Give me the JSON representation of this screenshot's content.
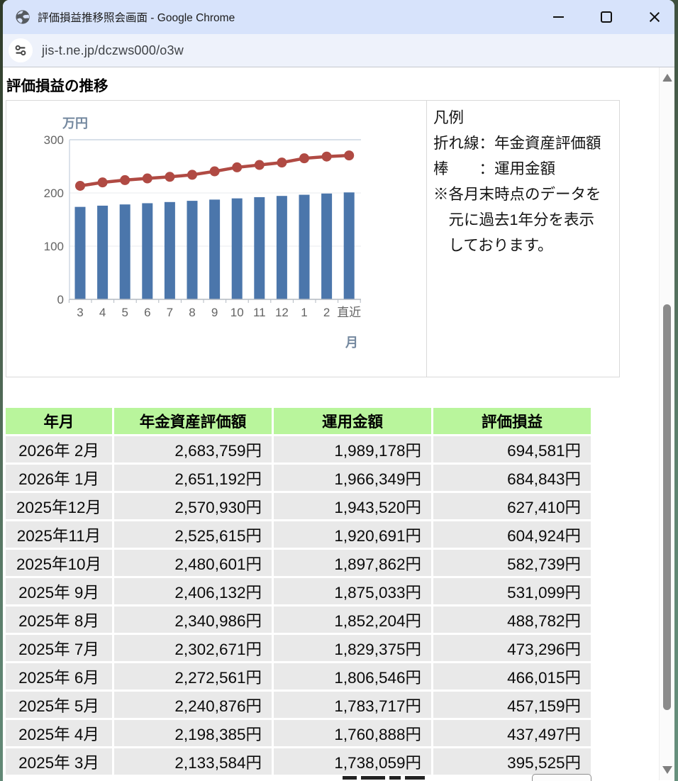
{
  "window": {
    "title": "評価損益推移照会画面 - Google Chrome",
    "controls": {
      "minimize": "minimize",
      "maximize": "maximize",
      "close": "close"
    }
  },
  "browser": {
    "url": "jis-t.ne.jp/dczws000/o3w"
  },
  "page": {
    "heading": "評価損益の推移"
  },
  "chart_data": {
    "type": "bar+line combo",
    "unit_label": "万円",
    "x_axis_label": "月",
    "categories": [
      "3",
      "4",
      "5",
      "6",
      "7",
      "8",
      "9",
      "10",
      "11",
      "12",
      "1",
      "2",
      "直近"
    ],
    "series": [
      {
        "name": "年金資産評価額",
        "type": "line",
        "color": "#b04a43",
        "values": [
          213.4,
          219.8,
          224.1,
          227.3,
          230.3,
          234.1,
          240.6,
          248.1,
          252.6,
          257.1,
          265.1,
          268.4,
          270.5
        ]
      },
      {
        "name": "運用金額",
        "type": "bar",
        "color": "#4b76ab",
        "values": [
          173.8,
          176.1,
          178.4,
          180.7,
          182.9,
          185.2,
          187.5,
          189.8,
          192.1,
          194.4,
          196.6,
          198.9,
          201.0
        ]
      }
    ],
    "ylim": [
      0,
      300
    ],
    "yticks": [
      0,
      100,
      200,
      300
    ],
    "grid": "horizontal",
    "legend_position": "right-panel"
  },
  "legend": {
    "lines": [
      "凡例",
      "折れ線：年金資産評価額",
      "棒　　：運用金額",
      "※各月末時点のデータを",
      "　元に過去1年分を表示",
      "　しております。"
    ]
  },
  "table": {
    "headers": [
      "年月",
      "年金資産評価額",
      "運用金額",
      "評価損益"
    ],
    "rows": [
      [
        "2026年 2月",
        "2,683,759円",
        "1,989,178円",
        "694,581円"
      ],
      [
        "2026年 1月",
        "2,651,192円",
        "1,966,349円",
        "684,843円"
      ],
      [
        "2025年12月",
        "2,570,930円",
        "1,943,520円",
        "627,410円"
      ],
      [
        "2025年11月",
        "2,525,615円",
        "1,920,691円",
        "604,924円"
      ],
      [
        "2025年10月",
        "2,480,601円",
        "1,897,862円",
        "582,739円"
      ],
      [
        "2025年 9月",
        "2,406,132円",
        "1,875,033円",
        "531,099円"
      ],
      [
        "2025年 8月",
        "2,340,986円",
        "1,852,204円",
        "488,782円"
      ],
      [
        "2025年 7月",
        "2,302,671円",
        "1,829,375円",
        "473,296円"
      ],
      [
        "2025年 6月",
        "2,272,561円",
        "1,806,546円",
        "466,015円"
      ],
      [
        "2025年 5月",
        "2,240,876円",
        "1,783,717円",
        "457,159円"
      ],
      [
        "2025年 4月",
        "2,198,385円",
        "1,760,888円",
        "437,497円"
      ],
      [
        "2025年 3月",
        "2,133,584円",
        "1,738,059円",
        "395,525円"
      ]
    ]
  },
  "colors": {
    "titlebar": "#d7e3fb",
    "urlbar": "#eef2fb",
    "bar": "#4b76ab",
    "line": "#b04a43",
    "table_header": "#b9f59c",
    "table_cell": "#e9e9e9",
    "axis_label_blue": "#74889f"
  }
}
